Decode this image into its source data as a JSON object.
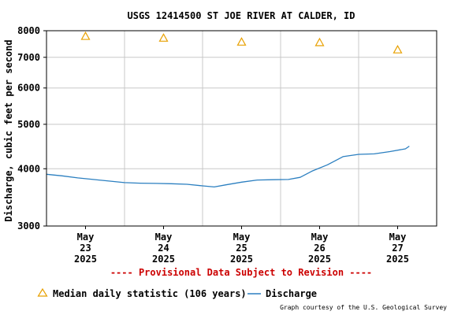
{
  "chart_data": {
    "type": "line",
    "title": "USGS 12414500 ST JOE RIVER AT CALDER, ID",
    "ylabel": "Discharge, cubic feet per second",
    "xlabel": "",
    "y_scale": "log",
    "ylim": [
      3000,
      8000
    ],
    "y_ticks": [
      3000,
      4000,
      5000,
      6000,
      7000,
      8000
    ],
    "x_ticks": [
      {
        "day": 23,
        "lines": [
          "May",
          "23",
          "2025"
        ]
      },
      {
        "day": 24,
        "lines": [
          "May",
          "24",
          "2025"
        ]
      },
      {
        "day": 25,
        "lines": [
          "May",
          "25",
          "2025"
        ]
      },
      {
        "day": 26,
        "lines": [
          "May",
          "26",
          "2025"
        ]
      },
      {
        "day": 27,
        "lines": [
          "May",
          "27",
          "2025"
        ]
      }
    ],
    "xlim_days": [
      22.5,
      27.5
    ],
    "grid": true,
    "series": [
      {
        "name": "Discharge",
        "color": "#2b7fc0",
        "points": [
          [
            22.5,
            3890
          ],
          [
            22.7,
            3860
          ],
          [
            22.9,
            3820
          ],
          [
            23.1,
            3790
          ],
          [
            23.3,
            3760
          ],
          [
            23.5,
            3730
          ],
          [
            23.7,
            3720
          ],
          [
            23.9,
            3715
          ],
          [
            24.1,
            3710
          ],
          [
            24.3,
            3700
          ],
          [
            24.5,
            3670
          ],
          [
            24.65,
            3650
          ],
          [
            24.8,
            3690
          ],
          [
            25.0,
            3740
          ],
          [
            25.2,
            3780
          ],
          [
            25.4,
            3785
          ],
          [
            25.6,
            3790
          ],
          [
            25.75,
            3830
          ],
          [
            25.9,
            3950
          ],
          [
            26.1,
            4080
          ],
          [
            26.3,
            4250
          ],
          [
            26.5,
            4300
          ],
          [
            26.7,
            4310
          ],
          [
            26.9,
            4360
          ],
          [
            27.1,
            4420
          ],
          [
            27.15,
            4480
          ]
        ]
      },
      {
        "name": "Median daily statistic (106 years)",
        "color": "#e8a000",
        "marker": "triangle",
        "points": [
          [
            23,
            7780
          ],
          [
            24,
            7710
          ],
          [
            25,
            7560
          ],
          [
            26,
            7540
          ],
          [
            27,
            7270
          ]
        ]
      }
    ]
  },
  "notice": "---- Provisional Data Subject to Revision ----",
  "legend": {
    "median_label": "Median daily statistic (106 years)",
    "discharge_label": "Discharge"
  },
  "credit": "Graph courtesy of the U.S. Geological Survey",
  "colors": {
    "notice": "#cc0000",
    "grid": "#c8c8c8",
    "frame": "#000000"
  }
}
